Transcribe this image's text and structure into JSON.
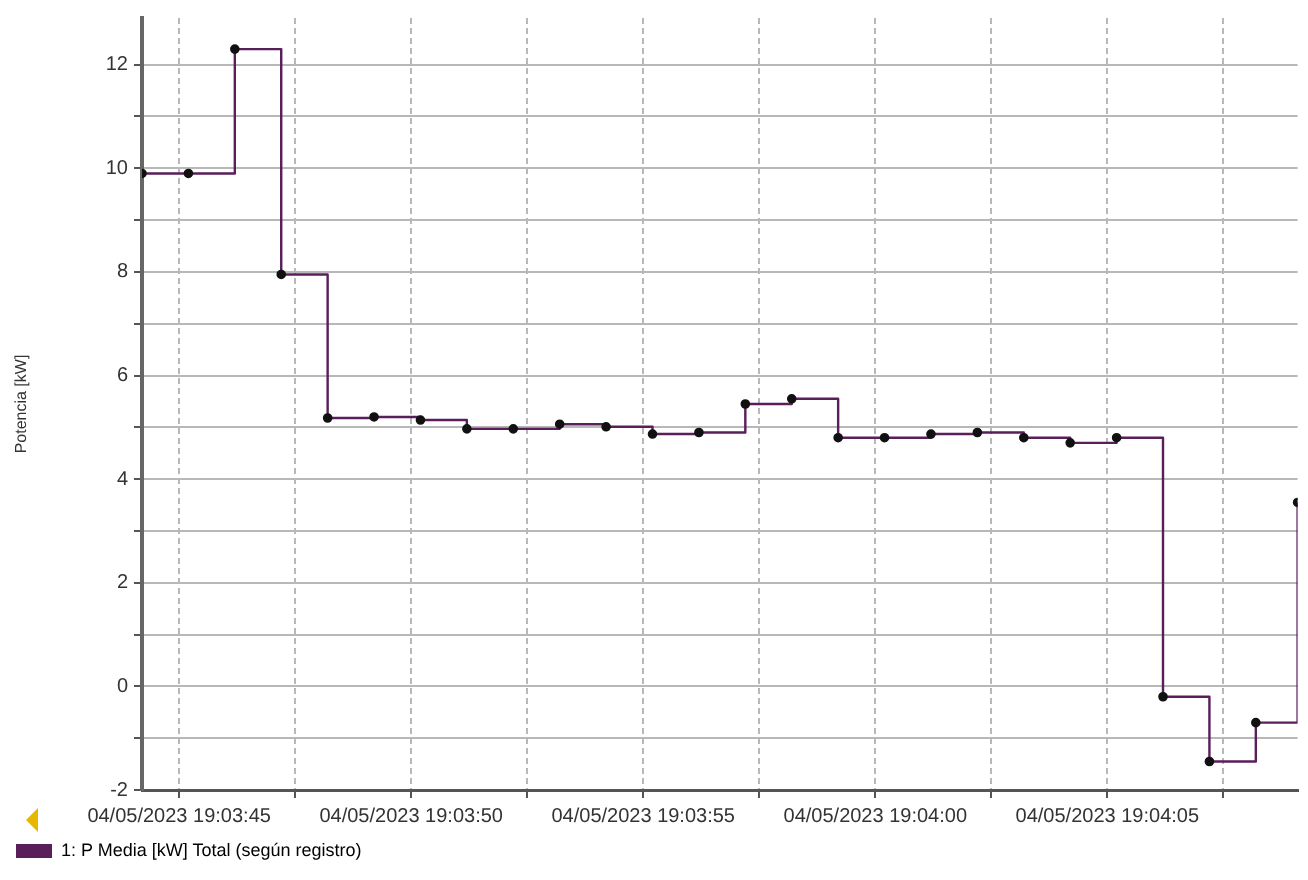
{
  "chart_data": {
    "type": "step",
    "ylabel": "Potencia [kW]",
    "x": [
      "2023-05-04T19:03:44.2",
      "2023-05-04T19:03:45.2",
      "2023-05-04T19:03:46.2",
      "2023-05-04T19:03:47.2",
      "2023-05-04T19:03:48.2",
      "2023-05-04T19:03:49.2",
      "2023-05-04T19:03:50.2",
      "2023-05-04T19:03:51.2",
      "2023-05-04T19:03:52.2",
      "2023-05-04T19:03:53.2",
      "2023-05-04T19:03:54.2",
      "2023-05-04T19:03:55.2",
      "2023-05-04T19:03:56.2",
      "2023-05-04T19:03:57.2",
      "2023-05-04T19:03:58.2",
      "2023-05-04T19:03:59.2",
      "2023-05-04T19:04:00.2",
      "2023-05-04T19:04:01.2",
      "2023-05-04T19:04:02.2",
      "2023-05-04T19:04:03.2",
      "2023-05-04T19:04:04.2",
      "2023-05-04T19:04:05.2",
      "2023-05-04T19:04:06.2",
      "2023-05-04T19:04:07.2",
      "2023-05-04T19:04:08.2",
      "2023-05-04T19:04:09.1"
    ],
    "series": [
      {
        "name": "1: P Media [kW] Total (según registro)",
        "color": "#5a1e5a",
        "values": [
          9.9,
          9.9,
          12.3,
          7.95,
          5.18,
          5.2,
          5.14,
          4.97,
          4.97,
          5.06,
          5.01,
          4.87,
          4.9,
          5.45,
          5.55,
          4.8,
          4.8,
          4.87,
          4.9,
          4.8,
          4.7,
          4.8,
          -0.2,
          -1.45,
          -0.7,
          3.55
        ]
      }
    ],
    "xlim": [
      "2023-05-04T19:03:44.2",
      "2023-05-04T19:04:09.1"
    ],
    "xticks": [
      {
        "value": "2023-05-04T19:03:45",
        "label": "04/05/2023 19:03:45"
      },
      {
        "value": "2023-05-04T19:03:47.5",
        "label": null
      },
      {
        "value": "2023-05-04T19:03:50",
        "label": "04/05/2023 19:03:50"
      },
      {
        "value": "2023-05-04T19:03:52.5",
        "label": null
      },
      {
        "value": "2023-05-04T19:03:55",
        "label": "04/05/2023 19:03:55"
      },
      {
        "value": "2023-05-04T19:03:57.5",
        "label": null
      },
      {
        "value": "2023-05-04T19:04:00",
        "label": "04/05/2023 19:04:00"
      },
      {
        "value": "2023-05-04T19:04:02.5",
        "label": null
      },
      {
        "value": "2023-05-04T19:04:05",
        "label": "04/05/2023 19:04:05"
      },
      {
        "value": "2023-05-04T19:04:07.5",
        "label": null
      }
    ],
    "ylim": [
      -2,
      12.9
    ],
    "yticks": [
      -2,
      {
        "value": -1,
        "label": null
      },
      0,
      {
        "value": 1,
        "label": null
      },
      2,
      {
        "value": 3,
        "label": null
      },
      4,
      {
        "value": 5,
        "label": null
      },
      6,
      {
        "value": 7,
        "label": null
      },
      8,
      {
        "value": 9,
        "label": null
      },
      10,
      {
        "value": 11,
        "label": null
      },
      12
    ],
    "grid": true,
    "legend": "bottom left",
    "marker": "circle",
    "line_style": "solid"
  }
}
